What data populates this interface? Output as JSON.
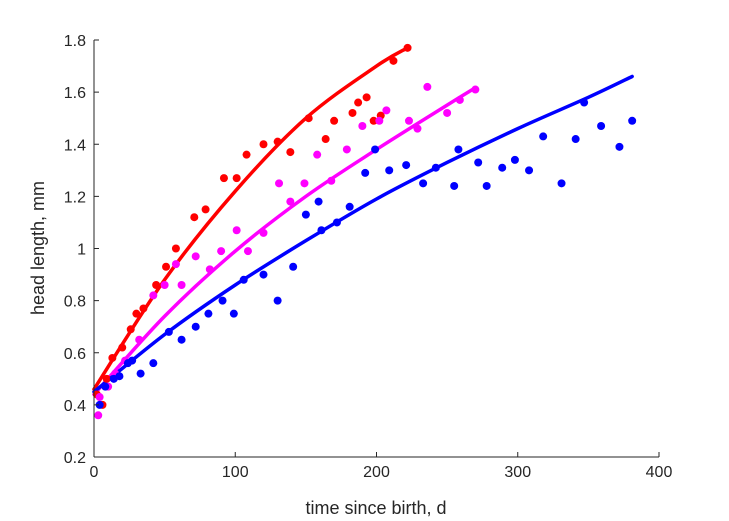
{
  "chart_data": {
    "type": "scatter",
    "title": "",
    "xlabel": "time since birth, d",
    "ylabel": "head length, mm",
    "xlim": [
      0,
      400
    ],
    "ylim": [
      0.2,
      1.8
    ],
    "xticks": [
      0,
      100,
      200,
      300,
      400
    ],
    "yticks": [
      0.2,
      0.4,
      0.6,
      0.8,
      1.0,
      1.2,
      1.4,
      1.6,
      1.8
    ],
    "yticklabels": [
      "0.2",
      "0.4",
      "0.6",
      "0.8",
      "1",
      "1.2",
      "1.4",
      "1.6",
      "1.8"
    ],
    "grid": false,
    "legend": "none",
    "series": [
      {
        "color": "#ff0000",
        "points": [
          [
            2,
            0.44
          ],
          [
            6,
            0.4
          ],
          [
            9,
            0.5
          ],
          [
            13,
            0.58
          ],
          [
            20,
            0.62
          ],
          [
            26,
            0.69
          ],
          [
            30,
            0.75
          ],
          [
            35,
            0.77
          ],
          [
            44,
            0.86
          ],
          [
            51,
            0.93
          ],
          [
            58,
            1.0
          ],
          [
            71,
            1.12
          ],
          [
            79,
            1.15
          ],
          [
            92,
            1.27
          ],
          [
            101,
            1.27
          ],
          [
            108,
            1.36
          ],
          [
            120,
            1.4
          ],
          [
            130,
            1.41
          ],
          [
            139,
            1.37
          ],
          [
            152,
            1.5
          ],
          [
            164,
            1.42
          ],
          [
            170,
            1.49
          ],
          [
            183,
            1.52
          ],
          [
            187,
            1.56
          ],
          [
            193,
            1.58
          ],
          [
            198,
            1.49
          ],
          [
            203,
            1.51
          ],
          [
            212,
            1.72
          ],
          [
            222,
            1.77
          ]
        ],
        "fit": [
          [
            0,
            0.46
          ],
          [
            50,
            0.88
          ],
          [
            100,
            1.22
          ],
          [
            150,
            1.5
          ],
          [
            200,
            1.7
          ],
          [
            222,
            1.77
          ]
        ]
      },
      {
        "color": "#ff00ff",
        "points": [
          [
            3,
            0.36
          ],
          [
            4,
            0.43
          ],
          [
            10,
            0.47
          ],
          [
            15,
            0.52
          ],
          [
            22,
            0.57
          ],
          [
            32,
            0.65
          ],
          [
            42,
            0.82
          ],
          [
            50,
            0.86
          ],
          [
            58,
            0.94
          ],
          [
            62,
            0.86
          ],
          [
            72,
            0.97
          ],
          [
            82,
            0.92
          ],
          [
            90,
            0.99
          ],
          [
            101,
            1.07
          ],
          [
            109,
            0.99
          ],
          [
            120,
            1.06
          ],
          [
            131,
            1.25
          ],
          [
            139,
            1.18
          ],
          [
            149,
            1.25
          ],
          [
            158,
            1.36
          ],
          [
            168,
            1.26
          ],
          [
            179,
            1.38
          ],
          [
            190,
            1.47
          ],
          [
            202,
            1.49
          ],
          [
            207,
            1.53
          ],
          [
            223,
            1.49
          ],
          [
            229,
            1.46
          ],
          [
            236,
            1.62
          ],
          [
            250,
            1.52
          ],
          [
            259,
            1.57
          ],
          [
            270,
            1.61
          ]
        ],
        "fit": [
          [
            0,
            0.44
          ],
          [
            50,
            0.74
          ],
          [
            100,
            0.99
          ],
          [
            150,
            1.2
          ],
          [
            200,
            1.38
          ],
          [
            250,
            1.55
          ],
          [
            268,
            1.61
          ]
        ]
      },
      {
        "color": "#0000ff",
        "points": [
          [
            4,
            0.4
          ],
          [
            8,
            0.47
          ],
          [
            14,
            0.5
          ],
          [
            18,
            0.51
          ],
          [
            24,
            0.56
          ],
          [
            27,
            0.57
          ],
          [
            33,
            0.52
          ],
          [
            42,
            0.56
          ],
          [
            53,
            0.68
          ],
          [
            62,
            0.65
          ],
          [
            72,
            0.7
          ],
          [
            81,
            0.75
          ],
          [
            91,
            0.8
          ],
          [
            99,
            0.75
          ],
          [
            106,
            0.88
          ],
          [
            120,
            0.9
          ],
          [
            130,
            0.8
          ],
          [
            141,
            0.93
          ],
          [
            150,
            1.13
          ],
          [
            159,
            1.18
          ],
          [
            161,
            1.07
          ],
          [
            172,
            1.1
          ],
          [
            181,
            1.16
          ],
          [
            192,
            1.29
          ],
          [
            199,
            1.38
          ],
          [
            209,
            1.3
          ],
          [
            221,
            1.32
          ],
          [
            233,
            1.25
          ],
          [
            242,
            1.31
          ],
          [
            255,
            1.24
          ],
          [
            258,
            1.38
          ],
          [
            272,
            1.33
          ],
          [
            278,
            1.24
          ],
          [
            289,
            1.31
          ],
          [
            298,
            1.34
          ],
          [
            308,
            1.3
          ],
          [
            318,
            1.43
          ],
          [
            331,
            1.25
          ],
          [
            341,
            1.42
          ],
          [
            347,
            1.56
          ],
          [
            359,
            1.47
          ],
          [
            372,
            1.39
          ],
          [
            381,
            1.49
          ]
        ],
        "fit": [
          [
            0,
            0.45
          ],
          [
            50,
            0.67
          ],
          [
            100,
            0.86
          ],
          [
            150,
            1.03
          ],
          [
            200,
            1.19
          ],
          [
            250,
            1.33
          ],
          [
            300,
            1.46
          ],
          [
            350,
            1.58
          ],
          [
            381,
            1.66
          ]
        ]
      }
    ]
  }
}
